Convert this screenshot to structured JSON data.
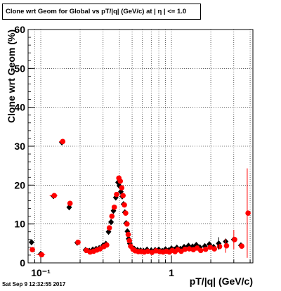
{
  "timestamp": "Sat Sep  9 12:32:55 2017",
  "chart_data": {
    "type": "scatter",
    "title": "Clone wrt Geom for Global vs pT/|q| (GeV/c) at |  η | <= 1.0",
    "xlabel": "pT/|q| (GeV/c)",
    "ylabel": "Clone wrt Geom (%)",
    "x_scale": "log",
    "xlim": [
      0.08,
      4.2
    ],
    "ylim": [
      0,
      60
    ],
    "y_ticks": [
      0,
      10,
      20,
      30,
      40,
      50,
      60
    ],
    "x_tick_labels": [
      {
        "value": 0.1,
        "label": "10⁻¹"
      },
      {
        "value": 1,
        "label": "1"
      }
    ],
    "grid": true,
    "series": [
      {
        "marker": "diamond",
        "color": "#000000",
        "points": [
          [
            0.085,
            5.3
          ],
          [
            0.1,
            2.3
          ],
          [
            0.125,
            17.2
          ],
          [
            0.145,
            31.0
          ],
          [
            0.165,
            14.3
          ],
          [
            0.19,
            5.2
          ],
          [
            0.22,
            3.3
          ],
          [
            0.235,
            3.1
          ],
          [
            0.25,
            3.4
          ],
          [
            0.265,
            3.6
          ],
          [
            0.28,
            3.8
          ],
          [
            0.3,
            4.5
          ],
          [
            0.315,
            4.9
          ],
          [
            0.33,
            8.0
          ],
          [
            0.345,
            10.5
          ],
          [
            0.36,
            13.4
          ],
          [
            0.375,
            16.8
          ],
          [
            0.39,
            20.7
          ],
          [
            0.4,
            19.8
          ],
          [
            0.41,
            18.3
          ],
          [
            0.42,
            17.1
          ],
          [
            0.43,
            15.1
          ],
          [
            0.44,
            13.0
          ],
          [
            0.45,
            10.2
          ],
          [
            0.46,
            8.1
          ],
          [
            0.47,
            6.2
          ],
          [
            0.48,
            5.0
          ],
          [
            0.5,
            4.0
          ],
          [
            0.52,
            3.6
          ],
          [
            0.55,
            3.3
          ],
          [
            0.58,
            3.2
          ],
          [
            0.61,
            3.1
          ],
          [
            0.65,
            3.4
          ],
          [
            0.7,
            3.2
          ],
          [
            0.75,
            3.3
          ],
          [
            0.8,
            3.4
          ],
          [
            0.85,
            3.1
          ],
          [
            0.9,
            3.5
          ],
          [
            0.95,
            3.2
          ],
          [
            1.0,
            3.7
          ],
          [
            1.05,
            3.4
          ],
          [
            1.1,
            3.9
          ],
          [
            1.17,
            3.6
          ],
          [
            1.25,
            4.1
          ],
          [
            1.35,
            4.4
          ],
          [
            1.45,
            4.2
          ],
          [
            1.55,
            4.6
          ],
          [
            1.65,
            4.0
          ],
          [
            1.8,
            4.3
          ],
          [
            1.95,
            4.8
          ],
          [
            2.1,
            4.1
          ],
          [
            2.3,
            5.0
          ],
          [
            2.6,
            5.5
          ],
          [
            3.0,
            6.0
          ],
          [
            3.4,
            4.5
          ]
        ]
      },
      {
        "marker": "circle",
        "color": "#ff0000",
        "points": [
          [
            0.085,
            3.4
          ],
          [
            0.1,
            2.1
          ],
          [
            0.125,
            17.3
          ],
          [
            0.145,
            31.2
          ],
          [
            0.165,
            15.3
          ],
          [
            0.19,
            5.3
          ],
          [
            0.22,
            3.2
          ],
          [
            0.235,
            2.8
          ],
          [
            0.25,
            3.0
          ],
          [
            0.265,
            3.3
          ],
          [
            0.28,
            3.6
          ],
          [
            0.3,
            4.2
          ],
          [
            0.315,
            4.6
          ],
          [
            0.33,
            9.0
          ],
          [
            0.345,
            12.0
          ],
          [
            0.36,
            14.3
          ],
          [
            0.375,
            17.6
          ],
          [
            0.39,
            21.8
          ],
          [
            0.4,
            21.0
          ],
          [
            0.41,
            19.3
          ],
          [
            0.42,
            17.3
          ],
          [
            0.43,
            14.9
          ],
          [
            0.44,
            12.8
          ],
          [
            0.45,
            10.0
          ],
          [
            0.46,
            7.3
          ],
          [
            0.47,
            5.7
          ],
          [
            0.48,
            4.3
          ],
          [
            0.5,
            3.5
          ],
          [
            0.52,
            3.1
          ],
          [
            0.55,
            2.9
          ],
          [
            0.58,
            2.9
          ],
          [
            0.61,
            2.8
          ],
          [
            0.65,
            3.0
          ],
          [
            0.7,
            2.7
          ],
          [
            0.75,
            3.1
          ],
          [
            0.8,
            2.9
          ],
          [
            0.85,
            2.8
          ],
          [
            0.9,
            3.0
          ],
          [
            0.95,
            2.8
          ],
          [
            1.0,
            3.2
          ],
          [
            1.05,
            2.9
          ],
          [
            1.1,
            3.4
          ],
          [
            1.17,
            3.0
          ],
          [
            1.25,
            3.5
          ],
          [
            1.35,
            3.6
          ],
          [
            1.45,
            3.4
          ],
          [
            1.55,
            3.8
          ],
          [
            1.65,
            3.2
          ],
          [
            1.8,
            3.5
          ],
          [
            1.95,
            4.0
          ],
          [
            2.1,
            3.6
          ],
          [
            2.3,
            4.2
          ],
          [
            2.6,
            4.4
          ],
          [
            3.0,
            6.0
          ],
          [
            3.4,
            4.3
          ],
          [
            3.8,
            12.8
          ]
        ]
      }
    ]
  }
}
